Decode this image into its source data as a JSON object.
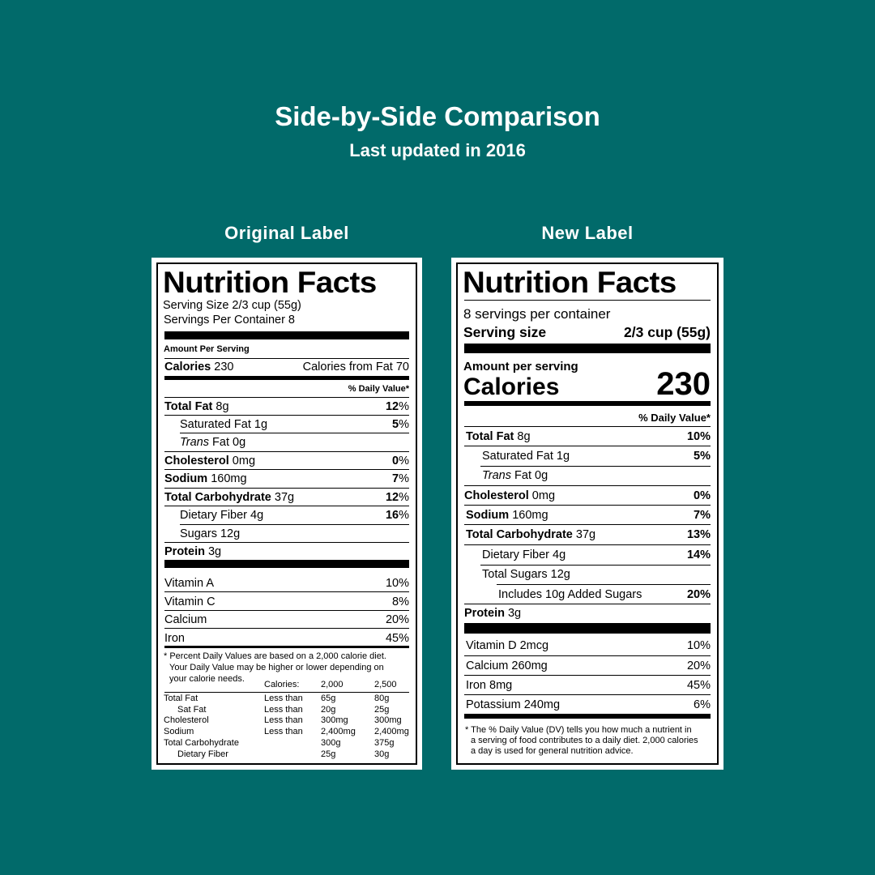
{
  "header": {
    "title": "Side-by-Side Comparison",
    "subtitle": "Last updated in 2016",
    "original_heading": "Original Label",
    "new_heading": "New Label"
  },
  "original": {
    "title": "Nutrition Facts",
    "serving_size": "Serving Size 2/3 cup (55g)",
    "servings_per_container": "Servings Per Container 8",
    "amount_per_serving": "Amount Per Serving",
    "calories_label": "Calories",
    "calories_value": "230",
    "calories_from_fat": "Calories from Fat 70",
    "daily_value_header": "% Daily Value*",
    "nutrients": [
      {
        "name": "Total Fat",
        "amount": "8g",
        "dv": "12",
        "pct": "%"
      },
      {
        "name": "Saturated Fat",
        "amount": "1g",
        "dv": "5",
        "pct": "%"
      },
      {
        "name": "Trans",
        "amount": "Fat 0g"
      },
      {
        "name": "Cholesterol",
        "amount": "0mg",
        "dv": "0",
        "pct": "%"
      },
      {
        "name": "Sodium",
        "amount": "160mg",
        "dv": "7",
        "pct": "%"
      },
      {
        "name": "Total Carbohydrate",
        "amount": "37g",
        "dv": "12",
        "pct": "%"
      },
      {
        "name": "Dietary Fiber",
        "amount": "4g",
        "dv": "16",
        "pct": "%"
      },
      {
        "name": "Sugars",
        "amount": "12g"
      },
      {
        "name": "Protein",
        "amount": "3g"
      }
    ],
    "vitamins": [
      {
        "name": "Vitamin A",
        "dv": "10%"
      },
      {
        "name": "Vitamin C",
        "dv": "8%"
      },
      {
        "name": "Calcium",
        "dv": "20%"
      },
      {
        "name": "Iron",
        "dv": "45%"
      }
    ],
    "footnote": [
      "* Percent Daily Values are based on a 2,000 calorie diet.",
      "Your Daily Value may be higher or lower depending on",
      "your calorie needs."
    ],
    "table": {
      "headers": [
        "Calories:",
        "2,000",
        "2,500"
      ],
      "rows": [
        {
          "name": "Total Fat",
          "cond": "Less than",
          "a": "65g",
          "b": "80g"
        },
        {
          "name": "Sat Fat",
          "cond": "Less than",
          "a": "20g",
          "b": "25g"
        },
        {
          "name": "Cholesterol",
          "cond": "Less than",
          "a": "300mg",
          "b": "300mg"
        },
        {
          "name": "Sodium",
          "cond": "Less than",
          "a": "2,400mg",
          "b": "2,400mg"
        },
        {
          "name": "Total Carbohydrate",
          "cond": "",
          "a": "300g",
          "b": "375g"
        },
        {
          "name": "Dietary Fiber",
          "cond": "",
          "a": "25g",
          "b": "30g"
        }
      ]
    }
  },
  "new": {
    "title": "Nutrition Facts",
    "servings_per_container": "8 servings per container",
    "serving_size_label": "Serving size",
    "serving_size_value": "2/3 cup (55g)",
    "amount_per_serving": "Amount per serving",
    "calories_label": "Calories",
    "calories_value": "230",
    "daily_value_header": "% Daily Value*",
    "nutrients": [
      {
        "name": "Total Fat",
        "amount": "8g",
        "dv": "10%"
      },
      {
        "name": "Saturated Fat",
        "amount": "1g",
        "dv": "5%"
      },
      {
        "name": "Trans",
        "amount": "Fat 0g"
      },
      {
        "name": "Cholesterol",
        "amount": "0mg",
        "dv": "0%"
      },
      {
        "name": "Sodium",
        "amount": "160mg",
        "dv": "7%"
      },
      {
        "name": "Total Carbohydrate",
        "amount": "37g",
        "dv": "13%"
      },
      {
        "name": "Dietary Fiber",
        "amount": "4g",
        "dv": "14%"
      },
      {
        "name": "Total Sugars",
        "amount": "12g"
      },
      {
        "name": "Includes 10g Added Sugars",
        "dv": "20%"
      },
      {
        "name": "Protein",
        "amount": "3g"
      }
    ],
    "vitamins": [
      {
        "name": "Vitamin D 2mcg",
        "dv": "10%"
      },
      {
        "name": "Calcium 260mg",
        "dv": "20%"
      },
      {
        "name": "Iron 8mg",
        "dv": "45%"
      },
      {
        "name": "Potassium 240mg",
        "dv": "6%"
      }
    ],
    "footnote": [
      "* The % Daily Value (DV) tells you how much a nutrient in",
      "a serving of food contributes to a daily diet. 2,000 calories",
      "a day is used for general nutrition advice."
    ]
  }
}
